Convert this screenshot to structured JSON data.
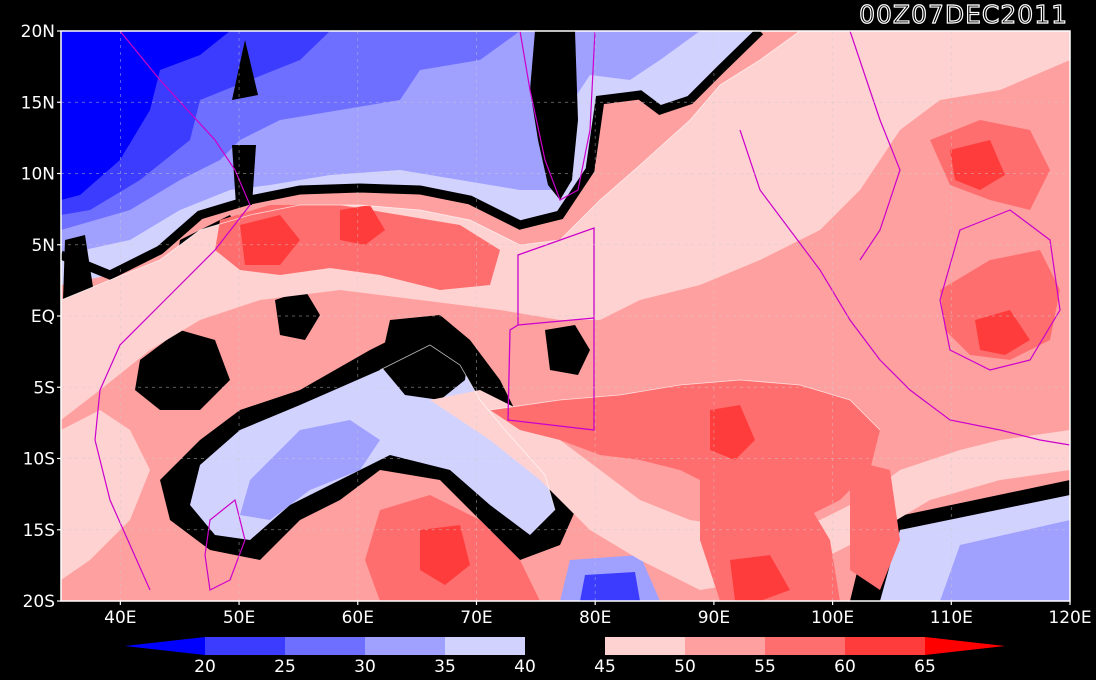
{
  "timestamp": "00Z07DEC2011",
  "map": {
    "lon_range": [
      35,
      120
    ],
    "lat_range": [
      -20,
      20
    ],
    "lat_labels": [
      "20N",
      "15N",
      "10N",
      "5N",
      "EQ",
      "5S",
      "10S",
      "15S",
      "20S"
    ],
    "lat_values": [
      20,
      15,
      10,
      5,
      0,
      -5,
      -10,
      -15,
      -20
    ],
    "lon_labels": [
      "40E",
      "50E",
      "60E",
      "70E",
      "80E",
      "90E",
      "100E",
      "110E",
      "120E"
    ],
    "lon_values": [
      40,
      50,
      60,
      70,
      80,
      90,
      100,
      110,
      120
    ],
    "gridlines": true
  },
  "colorbar": {
    "levels": [
      "20",
      "25",
      "30",
      "35",
      "40",
      "45",
      "50",
      "55",
      "60",
      "65"
    ],
    "colors": [
      "#0000ff",
      "#3c3cff",
      "#6e6eff",
      "#a0a0ff",
      "#d2d2ff",
      "#000000",
      "#ffd2d2",
      "#ffa0a0",
      "#ff6e6e",
      "#ff3c3c",
      "#ff0000"
    ],
    "extend": "both"
  }
}
